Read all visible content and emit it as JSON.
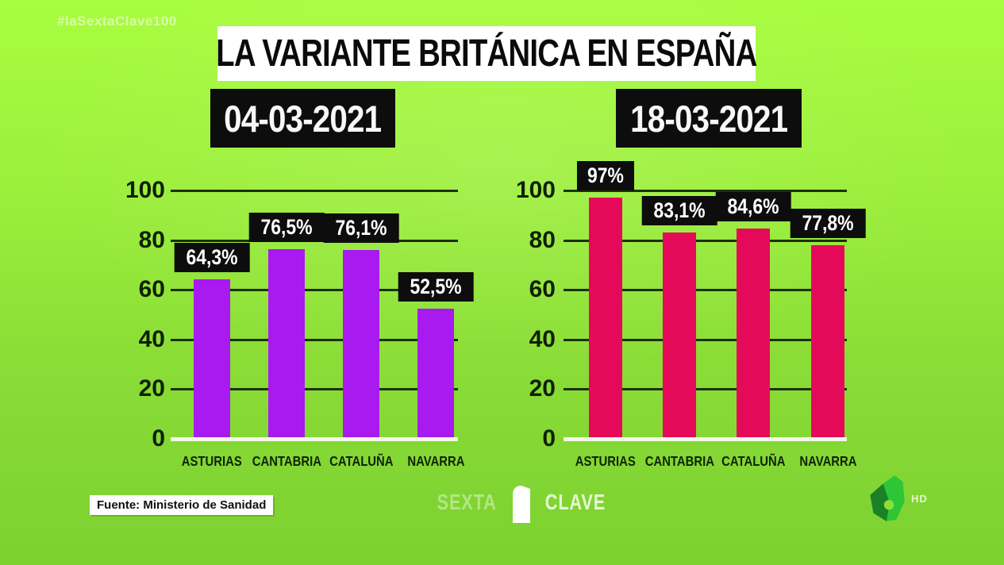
{
  "header": {
    "hashtag": "#laSextaClave100",
    "title": "LA VARIANTE BRITÁNICA EN ESPAÑA"
  },
  "chart_data": [
    {
      "type": "bar",
      "title": "04-03-2021",
      "categories": [
        "ASTURIAS",
        "CANTABRIA",
        "CATALUÑA",
        "NAVARRA"
      ],
      "values": [
        64.3,
        76.5,
        76.1,
        52.5
      ],
      "value_labels": [
        "64,3%",
        "76,5%",
        "76,1%",
        "52,5%"
      ],
      "bar_color": "#a81af0",
      "xlabel": "",
      "ylabel": "",
      "ylim": [
        0,
        100
      ],
      "yticks": [
        0,
        20,
        40,
        60,
        80,
        100
      ],
      "grid": true,
      "legend": "none"
    },
    {
      "type": "bar",
      "title": "18-03-2021",
      "categories": [
        "ASTURIAS",
        "CANTABRIA",
        "CATALUÑA",
        "NAVARRA"
      ],
      "values": [
        97,
        83.1,
        84.6,
        77.8
      ],
      "value_labels": [
        "97%",
        "83,1%",
        "84,6%",
        "77,8%"
      ],
      "bar_color": "#e50a59",
      "xlabel": "",
      "ylabel": "",
      "ylim": [
        0,
        100
      ],
      "yticks": [
        0,
        20,
        40,
        60,
        80,
        100
      ],
      "grid": true,
      "legend": "none"
    }
  ],
  "footer": {
    "source": "Fuente: Ministerio de Sanidad",
    "program_logo": {
      "sexta": "SEXTA",
      "clave": "CLAVE",
      "six_icon": "sexta-clave-6-icon"
    },
    "channel": {
      "logo_icon": "lasexta-6-logo",
      "hd": "HD"
    }
  },
  "colors": {
    "background_top": "#a9fd40",
    "background_bottom": "#7cd131",
    "bar_purple": "#a81af0",
    "bar_crimson": "#e50a59",
    "gridline": "#1c3007",
    "baseline": "#f2f7e6",
    "label_box_bg": "#0d0d0d",
    "title_box_bg": "#ffffff",
    "dark_text": "#0f2404"
  }
}
